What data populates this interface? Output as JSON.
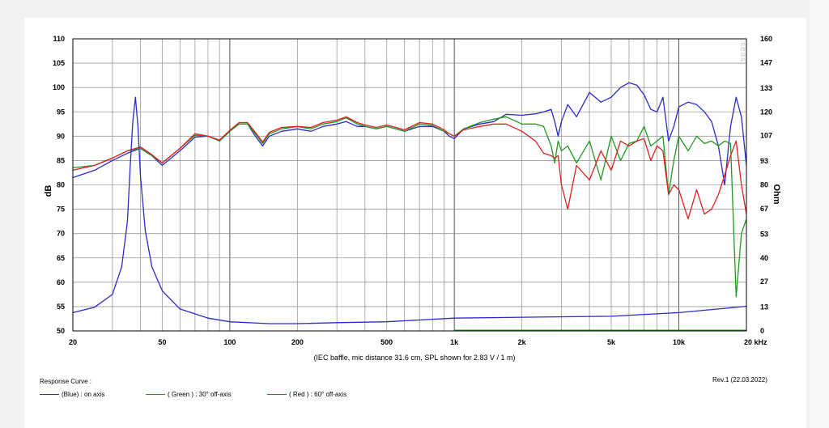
{
  "watermark": "seas",
  "caption": "(IEC baffle, mic distance 31.6 cm, SPL shown for 2.83 V / 1 m)",
  "revision": "Rev.1 (22.03.2022)",
  "legend": {
    "title": "Response Curve :",
    "items": [
      {
        "label": "(Blue)  : on axis",
        "color": "#2a2acf"
      },
      {
        "label": "( Green ) : 30° off-axis",
        "color": "#1e9a1e"
      },
      {
        "label": "( Red ) : 60° off-axis",
        "color": "#e02020"
      }
    ]
  },
  "chart_data": {
    "type": "line",
    "title": "",
    "xlabel": "",
    "ylabel": "dB",
    "y2label": "Ohm",
    "xscale": "log",
    "xlim": [
      20,
      20000
    ],
    "ylim": [
      50,
      110
    ],
    "y2lim": [
      0,
      160
    ],
    "grid": true,
    "x_ticks": [
      {
        "v": 20,
        "label": "20"
      },
      {
        "v": 50,
        "label": "50"
      },
      {
        "v": 100,
        "label": "100"
      },
      {
        "v": 200,
        "label": "200"
      },
      {
        "v": 500,
        "label": "500"
      },
      {
        "v": 1000,
        "label": "1k"
      },
      {
        "v": 2000,
        "label": "2k"
      },
      {
        "v": 5000,
        "label": "5k"
      },
      {
        "v": 10000,
        "label": "10k"
      },
      {
        "v": 20000,
        "label": "20 kHz"
      }
    ],
    "y_ticks": [
      "50",
      "55",
      "60",
      "65",
      "70",
      "75",
      "80",
      "85",
      "90",
      "95",
      "100",
      "105",
      "110"
    ],
    "y2_ticks": [
      "0",
      "13",
      "27",
      "40",
      "53",
      "67",
      "80",
      "93",
      "107",
      "120",
      "133",
      "147",
      "160"
    ],
    "series": [
      {
        "name": "on axis",
        "color": "#2a2acf",
        "axis": "left",
        "x": [
          20,
          25,
          30,
          35,
          40,
          45,
          50,
          60,
          70,
          80,
          90,
          100,
          110,
          120,
          130,
          140,
          150,
          170,
          200,
          230,
          260,
          300,
          330,
          370,
          400,
          450,
          500,
          550,
          600,
          700,
          800,
          900,
          950,
          1000,
          1100,
          1300,
          1500,
          1700,
          2000,
          2300,
          2500,
          2700,
          2800,
          2900,
          3000,
          3200,
          3500,
          4000,
          4500,
          5000,
          5500,
          6000,
          6500,
          7000,
          7500,
          8000,
          8500,
          9000,
          9500,
          10000,
          11000,
          12000,
          13000,
          14000,
          15000,
          16000,
          17000,
          18000,
          19000,
          20000
        ],
        "y": [
          81.5,
          83,
          85,
          86.5,
          87.5,
          86,
          84,
          87,
          89.8,
          90,
          89,
          91,
          92.5,
          92.5,
          90,
          88,
          90,
          91,
          91.5,
          91,
          92,
          92.5,
          93,
          92,
          92,
          91.5,
          92,
          91.5,
          91,
          92,
          92,
          91,
          90,
          89.5,
          91.5,
          92.5,
          93,
          94.5,
          94.3,
          94.6,
          95,
          95.5,
          93,
          90,
          93,
          96.5,
          94,
          99,
          97,
          98,
          100,
          101,
          100.5,
          98.5,
          95.5,
          95,
          98,
          89,
          92,
          96,
          97,
          96.5,
          95,
          93,
          88,
          80,
          92,
          98,
          94,
          84
        ]
      },
      {
        "name": "30° off-axis",
        "color": "#1e9a1e",
        "axis": "left",
        "x": [
          20,
          25,
          30,
          35,
          40,
          45,
          50,
          60,
          70,
          80,
          90,
          100,
          110,
          120,
          130,
          140,
          150,
          170,
          200,
          230,
          260,
          300,
          330,
          370,
          400,
          450,
          500,
          550,
          600,
          700,
          800,
          900,
          950,
          1000,
          1100,
          1300,
          1500,
          1700,
          2000,
          2300,
          2500,
          2700,
          2800,
          2900,
          3000,
          3200,
          3500,
          4000,
          4500,
          5000,
          5500,
          6000,
          6500,
          7000,
          7500,
          8000,
          8500,
          9000,
          9500,
          10000,
          11000,
          12000,
          13000,
          14000,
          15000,
          16000,
          17000,
          18000,
          19000,
          20000
        ],
        "y": [
          83.5,
          84,
          85.5,
          87,
          87.5,
          86,
          84.5,
          87.5,
          90.2,
          90,
          89,
          91,
          92.5,
          92.5,
          90.5,
          88.5,
          90.5,
          91.5,
          92,
          91.5,
          92.5,
          93,
          93.8,
          92.5,
          92,
          91.5,
          92,
          91.5,
          91,
          92.5,
          92.2,
          91,
          90.5,
          90,
          91.5,
          92.8,
          93.5,
          94,
          92.5,
          92.5,
          92,
          88,
          84.5,
          89,
          87,
          88,
          84.5,
          89,
          81,
          90,
          85,
          88.5,
          89,
          92,
          88,
          89,
          90,
          78,
          85,
          90,
          87,
          90,
          88.5,
          89,
          88,
          89,
          88.5,
          57,
          70,
          73
        ]
      },
      {
        "name": "60° off-axis",
        "color": "#e02020",
        "axis": "left",
        "x": [
          20,
          25,
          30,
          35,
          40,
          45,
          50,
          60,
          70,
          80,
          90,
          100,
          110,
          120,
          130,
          140,
          150,
          170,
          200,
          230,
          260,
          300,
          330,
          370,
          400,
          450,
          500,
          550,
          600,
          700,
          800,
          900,
          950,
          1000,
          1100,
          1300,
          1500,
          1700,
          2000,
          2300,
          2500,
          2700,
          2800,
          2900,
          3000,
          3200,
          3500,
          4000,
          4500,
          5000,
          5500,
          6000,
          6500,
          7000,
          7500,
          8000,
          8500,
          9000,
          9500,
          10000,
          11000,
          12000,
          13000,
          14000,
          15000,
          16000,
          17000,
          18000,
          19000,
          20000
        ],
        "y": [
          83,
          84,
          85.5,
          87,
          87.8,
          86.2,
          84.5,
          87.5,
          90.5,
          90,
          89.2,
          91.2,
          92.8,
          92.8,
          90.8,
          88.8,
          90.8,
          91.8,
          92,
          91.8,
          92.8,
          93.3,
          94,
          92.8,
          92.3,
          91.8,
          92.3,
          91.8,
          91.3,
          92.8,
          92.5,
          91.3,
          90.5,
          90,
          91.3,
          92,
          92.5,
          92.5,
          91,
          89,
          86.5,
          86,
          85.5,
          86,
          80,
          75,
          84,
          81,
          87,
          83,
          89,
          88,
          89,
          89.5,
          85,
          88,
          87,
          78,
          80,
          79,
          73,
          79,
          74,
          75,
          78,
          82,
          86,
          89,
          80,
          74
        ]
      },
      {
        "name": "impedance",
        "color": "#2a2acf",
        "axis": "right",
        "x": [
          20,
          25,
          30,
          33,
          35,
          36,
          37,
          38,
          39,
          40,
          42,
          45,
          50,
          60,
          80,
          100,
          150,
          200,
          300,
          500,
          700,
          1000,
          2000,
          5000,
          10000,
          15000,
          20000
        ],
        "y": [
          10,
          13,
          20,
          35,
          60,
          90,
          115,
          128,
          112,
          85,
          55,
          35,
          22,
          12,
          7,
          5,
          4,
          4,
          4.5,
          5,
          6,
          7,
          7.5,
          8,
          10,
          12,
          13.5
        ]
      }
    ]
  }
}
